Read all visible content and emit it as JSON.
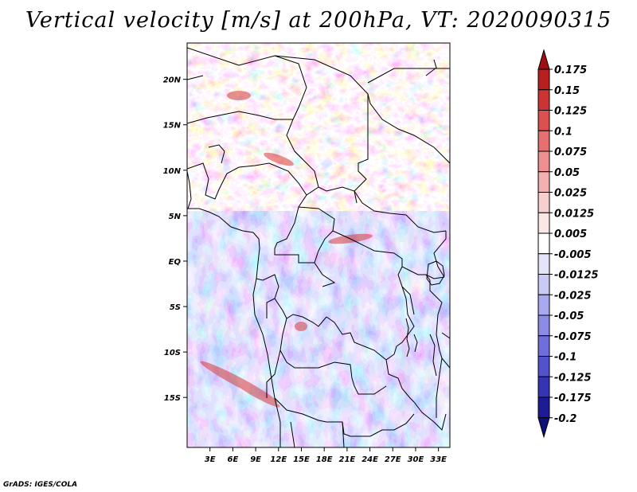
{
  "title": "Vertical velocity [m/s] at 200hPa, VT: 2020090315",
  "footer": "GrADS: IGES/COLA",
  "map": {
    "lon_range": [
      0,
      34.5
    ],
    "lat_range": [
      -20.5,
      24
    ],
    "lat_ticks": [
      {
        "value": 20,
        "label": "20N"
      },
      {
        "value": 15,
        "label": "15N"
      },
      {
        "value": 10,
        "label": "10N"
      },
      {
        "value": 5,
        "label": "5N"
      },
      {
        "value": 0,
        "label": "EQ"
      },
      {
        "value": -5,
        "label": "5S"
      },
      {
        "value": -10,
        "label": "10S"
      },
      {
        "value": -15,
        "label": "15S"
      }
    ],
    "lon_ticks": [
      {
        "value": 3,
        "label": "3E"
      },
      {
        "value": 6,
        "label": "6E"
      },
      {
        "value": 9,
        "label": "9E"
      },
      {
        "value": 12,
        "label": "12E"
      },
      {
        "value": 15,
        "label": "15E"
      },
      {
        "value": 18,
        "label": "18E"
      },
      {
        "value": 21,
        "label": "21E"
      },
      {
        "value": 24,
        "label": "24E"
      },
      {
        "value": 27,
        "label": "27E"
      },
      {
        "value": 30,
        "label": "30E"
      },
      {
        "value": 33,
        "label": "33E"
      }
    ]
  },
  "colorbar": {
    "levels": [
      "0.175",
      "0.15",
      "0.125",
      "0.1",
      "0.075",
      "0.05",
      "0.025",
      "0.0125",
      "0.005",
      "-0.005",
      "-0.0125",
      "-0.025",
      "-0.05",
      "-0.075",
      "-0.1",
      "-0.125",
      "-0.175",
      "-0.2"
    ],
    "colors": [
      "#a01010",
      "#b82020",
      "#cc3333",
      "#dd5050",
      "#e67070",
      "#ee9090",
      "#f4b0b0",
      "#f8cfcf",
      "#fbe6e6",
      "#ffffff",
      "#e4e4fb",
      "#cacaf6",
      "#a9a9ef",
      "#8c8ce6",
      "#6f6fdc",
      "#5252cc",
      "#3434b4",
      "#1c1c96",
      "#10107a"
    ]
  }
}
